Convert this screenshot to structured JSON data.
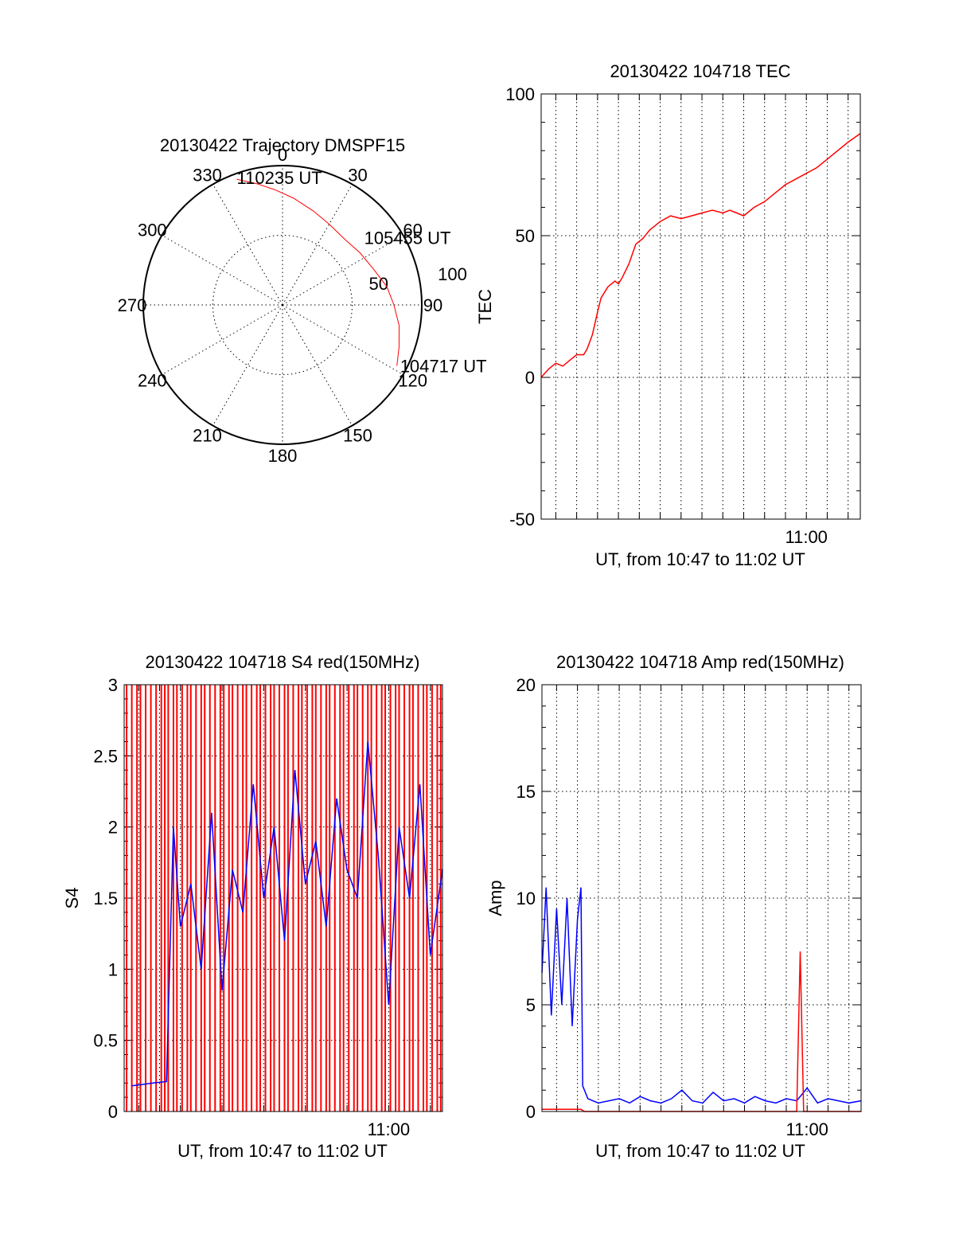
{
  "chart_data": [
    {
      "type": "polar-trajectory",
      "title": "20130422 Trajectory DMSPF15",
      "angle_labels": [
        "0",
        "30",
        "60",
        "90",
        "120",
        "150",
        "180",
        "210",
        "240",
        "270",
        "300",
        "330"
      ],
      "radial_labels": [
        "50",
        "100"
      ],
      "rlim": [
        0,
        100
      ],
      "radial_grid": [
        50
      ],
      "grid": true,
      "trajectory_color": "#ff0000",
      "trajectory": [
        {
          "az": 118,
          "zenith": 93
        },
        {
          "az": 110,
          "zenith": 89
        },
        {
          "az": 100,
          "zenith": 85
        },
        {
          "az": 90,
          "zenith": 80
        },
        {
          "az": 80,
          "zenith": 76
        },
        {
          "az": 68,
          "zenith": 70
        },
        {
          "az": 56,
          "zenith": 67
        },
        {
          "az": 44,
          "zenith": 65
        },
        {
          "az": 30,
          "zenith": 67
        },
        {
          "az": 18,
          "zenith": 71
        },
        {
          "az": 6,
          "zenith": 77
        },
        {
          "az": -4,
          "zenith": 83
        },
        {
          "az": -12,
          "zenith": 89
        },
        {
          "az": -20,
          "zenith": 96
        }
      ],
      "annotations": [
        {
          "text": "110235 UT",
          "az": -20,
          "zenith": 96
        },
        {
          "text": "105455 UT",
          "az": 62,
          "zenith": 69
        },
        {
          "text": "104717 UT",
          "az": 118,
          "zenith": 93
        }
      ]
    },
    {
      "type": "line",
      "title": "20130422 104718 TEC",
      "xlabel": "UT, from 10:47 to 11:02 UT",
      "ylabel": "TEC",
      "xlim": [
        "10:47:18",
        "11:02:35"
      ],
      "ylim": [
        -50,
        100
      ],
      "yticks": [
        "-50",
        "0",
        "50",
        "100"
      ],
      "xtick_labels": [
        {
          "value": "11:00:00",
          "label": "11:00"
        }
      ],
      "grid": true,
      "series": [
        {
          "color": "#ff0000",
          "x": [
            "10:47:18",
            "10:47:40",
            "10:48:00",
            "10:48:20",
            "10:48:40",
            "10:49:00",
            "10:49:20",
            "10:49:30",
            "10:49:45",
            "10:50:00",
            "10:50:10",
            "10:50:30",
            "10:50:50",
            "10:51:00",
            "10:51:10",
            "10:51:30",
            "10:51:50",
            "10:52:10",
            "10:52:30",
            "10:53:00",
            "10:53:30",
            "10:54:00",
            "10:54:30",
            "10:55:00",
            "10:55:30",
            "10:56:00",
            "10:56:20",
            "10:56:40",
            "10:57:00",
            "10:57:30",
            "10:58:00",
            "10:58:30",
            "10:59:00",
            "10:59:30",
            "11:00:00",
            "11:00:30",
            "11:01:00",
            "11:01:30",
            "11:02:00",
            "11:02:35"
          ],
          "y": [
            0,
            3,
            5,
            4,
            6,
            8,
            8,
            10,
            15,
            23,
            28,
            32,
            34,
            33,
            35,
            40,
            47,
            49,
            52,
            55,
            57,
            56,
            57,
            58,
            59,
            58,
            59,
            58,
            57,
            60,
            62,
            65,
            68,
            70,
            72,
            74,
            77,
            80,
            83,
            86
          ]
        }
      ]
    },
    {
      "type": "line",
      "title": "20130422 104718 S4 red(150MHz)",
      "xlabel": "UT, from 10:47 to 11:02 UT",
      "ylabel": "S4",
      "xlim": [
        "10:47:18",
        "11:02:35"
      ],
      "ylim": [
        0,
        3
      ],
      "yticks": [
        "0",
        "0.5",
        "1",
        "1.5",
        "2",
        "2.5",
        "3"
      ],
      "xtick_labels": [
        {
          "value": "11:00:00",
          "label": "11:00"
        }
      ],
      "grid": true,
      "series": [
        {
          "color": "#0000ff",
          "x": [
            "10:47:40",
            "10:48:10",
            "10:48:40",
            "10:49:20",
            "10:49:40",
            "10:50:00",
            "10:50:30",
            "10:51:00",
            "10:51:30",
            "10:52:00",
            "10:52:30",
            "10:53:00",
            "10:53:30",
            "10:54:00",
            "10:54:30",
            "10:55:00",
            "10:55:30",
            "10:56:00",
            "10:56:30",
            "10:57:00",
            "10:57:30",
            "10:58:00",
            "10:58:30",
            "10:59:00",
            "10:59:30",
            "11:00:00",
            "11:00:30",
            "11:01:00",
            "11:01:30",
            "11:02:00",
            "11:02:35"
          ],
          "y": [
            0.18,
            0.19,
            0.2,
            0.21,
            2.0,
            1.3,
            1.6,
            1.0,
            2.1,
            0.85,
            1.7,
            1.4,
            2.3,
            1.5,
            2.0,
            1.2,
            2.4,
            1.6,
            1.9,
            1.3,
            2.2,
            1.7,
            1.5,
            2.6,
            1.8,
            0.75,
            2.0,
            1.5,
            2.3,
            1.1,
            1.7
          ]
        },
        {
          "color": "#ff0000",
          "style": "spikes",
          "x": [
            "10:47:25",
            "10:47:40",
            "10:47:55",
            "10:48:05",
            "10:48:20",
            "10:48:35",
            "10:48:50",
            "10:49:05",
            "10:49:15",
            "10:49:25",
            "10:49:40",
            "10:49:50",
            "10:50:05",
            "10:50:20",
            "10:50:30",
            "10:50:45",
            "10:51:00",
            "10:51:10",
            "10:51:25",
            "10:51:40",
            "10:51:55",
            "10:52:05",
            "10:52:20",
            "10:52:30",
            "10:52:45",
            "10:53:00",
            "10:53:10",
            "10:53:25",
            "10:53:40",
            "10:53:50",
            "10:54:05",
            "10:54:20",
            "10:54:30",
            "10:54:45",
            "10:55:00",
            "10:55:10",
            "10:55:25",
            "10:55:40",
            "10:55:50",
            "10:56:05",
            "10:56:20",
            "10:56:30",
            "10:56:45",
            "10:57:00",
            "10:57:10",
            "10:57:25",
            "10:57:40",
            "10:57:50",
            "10:58:05",
            "10:58:20",
            "10:58:30",
            "10:58:45",
            "10:59:00",
            "10:59:10",
            "10:59:25",
            "10:59:40",
            "10:59:50",
            "11:00:05",
            "11:00:20",
            "11:00:30",
            "11:00:45",
            "11:01:00",
            "11:01:10",
            "11:01:25",
            "11:01:40",
            "11:01:50",
            "11:02:05",
            "11:02:20",
            "11:02:30"
          ],
          "y": [
            3,
            3,
            3,
            3,
            3,
            3,
            3,
            3,
            3,
            3,
            3,
            3,
            3,
            3,
            3,
            3,
            3,
            3,
            3,
            3,
            3,
            3,
            3,
            3,
            3,
            3,
            3,
            3,
            3,
            3,
            3,
            3,
            3,
            3,
            3,
            3,
            3,
            3,
            3,
            3,
            3,
            3,
            3,
            3,
            3,
            3,
            3,
            3,
            3,
            3,
            3,
            3,
            3,
            3,
            3,
            3,
            3,
            3,
            3,
            3,
            3,
            3,
            3,
            3,
            3,
            3,
            3,
            3,
            3
          ]
        }
      ]
    },
    {
      "type": "line",
      "title": "20130422 104718 Amp red(150MHz)",
      "xlabel": "UT, from 10:47 to 11:02 UT",
      "ylabel": "Amp",
      "xlim": [
        "10:47:18",
        "11:02:35"
      ],
      "ylim": [
        0,
        20
      ],
      "yticks": [
        "0",
        "5",
        "10",
        "15",
        "20"
      ],
      "xtick_labels": [
        {
          "value": "11:00:00",
          "label": "11:00"
        }
      ],
      "grid": true,
      "series": [
        {
          "color": "#0000ff",
          "x": [
            "10:47:18",
            "10:47:30",
            "10:47:45",
            "10:48:00",
            "10:48:15",
            "10:48:30",
            "10:48:45",
            "10:49:00",
            "10:49:10",
            "10:49:15",
            "10:49:30",
            "10:50:00",
            "10:50:30",
            "10:51:00",
            "10:51:30",
            "10:52:00",
            "10:52:30",
            "10:53:00",
            "10:53:30",
            "10:54:00",
            "10:54:30",
            "10:55:00",
            "10:55:30",
            "10:56:00",
            "10:56:30",
            "10:57:00",
            "10:57:30",
            "10:58:00",
            "10:58:30",
            "10:59:00",
            "10:59:30",
            "11:00:00",
            "11:00:30",
            "11:01:00",
            "11:01:30",
            "11:02:00",
            "11:02:35"
          ],
          "y": [
            6.5,
            10.5,
            4.5,
            9.5,
            5.0,
            10.0,
            4.0,
            9.0,
            10.5,
            1.2,
            0.6,
            0.4,
            0.5,
            0.6,
            0.4,
            0.7,
            0.5,
            0.4,
            0.6,
            1.0,
            0.5,
            0.4,
            0.9,
            0.5,
            0.6,
            0.4,
            0.7,
            0.5,
            0.4,
            0.6,
            0.5,
            1.1,
            0.4,
            0.6,
            0.5,
            0.4,
            0.5
          ]
        },
        {
          "color": "#ff0000",
          "x": [
            "10:47:18",
            "10:48:00",
            "10:49:10",
            "10:49:20",
            "10:52:00",
            "10:56:00",
            "10:59:30",
            "10:59:40",
            "10:59:50",
            "11:02:35"
          ],
          "y": [
            0.1,
            0.1,
            0.1,
            0,
            0,
            0,
            0,
            7.5,
            0,
            0
          ]
        }
      ]
    }
  ]
}
